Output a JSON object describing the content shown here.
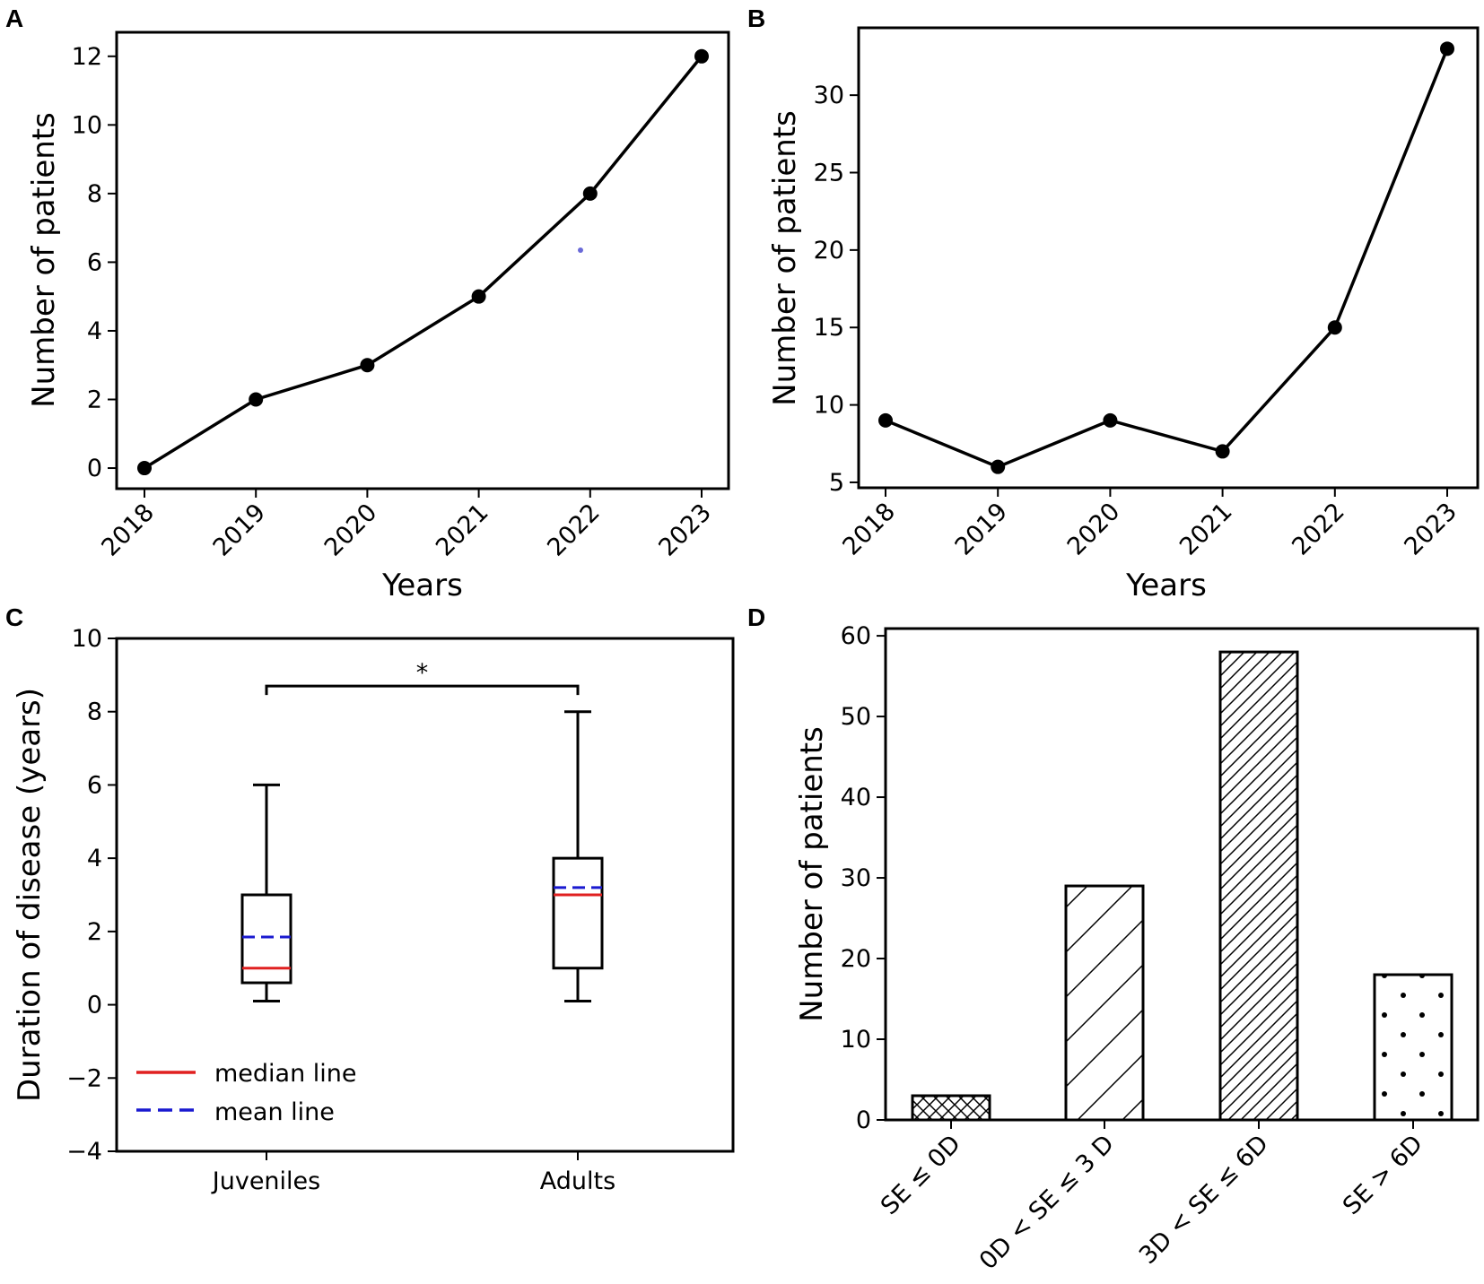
{
  "panels": [
    {
      "letter": "A"
    },
    {
      "letter": "B"
    },
    {
      "letter": "C"
    },
    {
      "letter": "D"
    }
  ],
  "chart_data": [
    {
      "panel": "A",
      "type": "line",
      "x": [
        "2018",
        "2019",
        "2020",
        "2021",
        "2022",
        "2023"
      ],
      "values": [
        0,
        2,
        3,
        5,
        8,
        12
      ],
      "xlabel": "Years",
      "ylabel": "Number of patients",
      "ylim": [
        -0.6,
        12.7
      ],
      "yticks": [
        0,
        2,
        4,
        6,
        8,
        10,
        12
      ],
      "grid": false
    },
    {
      "panel": "B",
      "type": "line",
      "x": [
        "2018",
        "2019",
        "2020",
        "2021",
        "2022",
        "2023"
      ],
      "values": [
        9,
        6,
        9,
        7,
        15,
        33
      ],
      "xlabel": "Years",
      "ylabel": "Number of patients",
      "ylim": [
        4.65,
        34.35
      ],
      "yticks": [
        5,
        10,
        15,
        20,
        25,
        30
      ],
      "grid": false
    },
    {
      "panel": "C",
      "type": "box",
      "categories": [
        "Juveniles",
        "Adults"
      ],
      "boxes": [
        {
          "name": "Juveniles",
          "whisker_low": 0.1,
          "q1": 0.6,
          "median": 1.0,
          "mean": 1.85,
          "q3": 3.0,
          "whisker_high": 6.0
        },
        {
          "name": "Adults",
          "whisker_low": 0.1,
          "q1": 1.0,
          "median": 3.0,
          "mean": 3.2,
          "q3": 4.0,
          "whisker_high": 8.0
        }
      ],
      "significance": {
        "label": "*",
        "y": 8.7
      },
      "ylabel": "Duration of disease (years)",
      "ylim": [
        -4,
        10
      ],
      "yticks": [
        -4,
        -2,
        0,
        2,
        4,
        6,
        8,
        10
      ],
      "yticklabels": [
        "−4",
        "−2",
        "0",
        "2",
        "4",
        "6",
        "8",
        "10"
      ],
      "legend": [
        {
          "label": "median line",
          "color": "#e02020",
          "style": "solid"
        },
        {
          "label": "mean line",
          "color": "#1a1ad0",
          "style": "dashed"
        }
      ],
      "legend_position": "lower-left",
      "grid": false
    },
    {
      "panel": "D",
      "type": "bar",
      "categories": [
        "SE ≤ 0D",
        "0D < SE ≤ 3 D",
        "3D < SE ≤ 6D",
        "SE > 6D"
      ],
      "values": [
        3,
        29,
        58,
        18
      ],
      "hatches": [
        "crosshatch",
        "sparse-diagonal",
        "dense-diagonal",
        "dots"
      ],
      "ylabel": "Number of patients",
      "ylim": [
        0,
        60.9
      ],
      "yticks": [
        0,
        10,
        20,
        30,
        40,
        50,
        60
      ],
      "grid": false
    }
  ]
}
